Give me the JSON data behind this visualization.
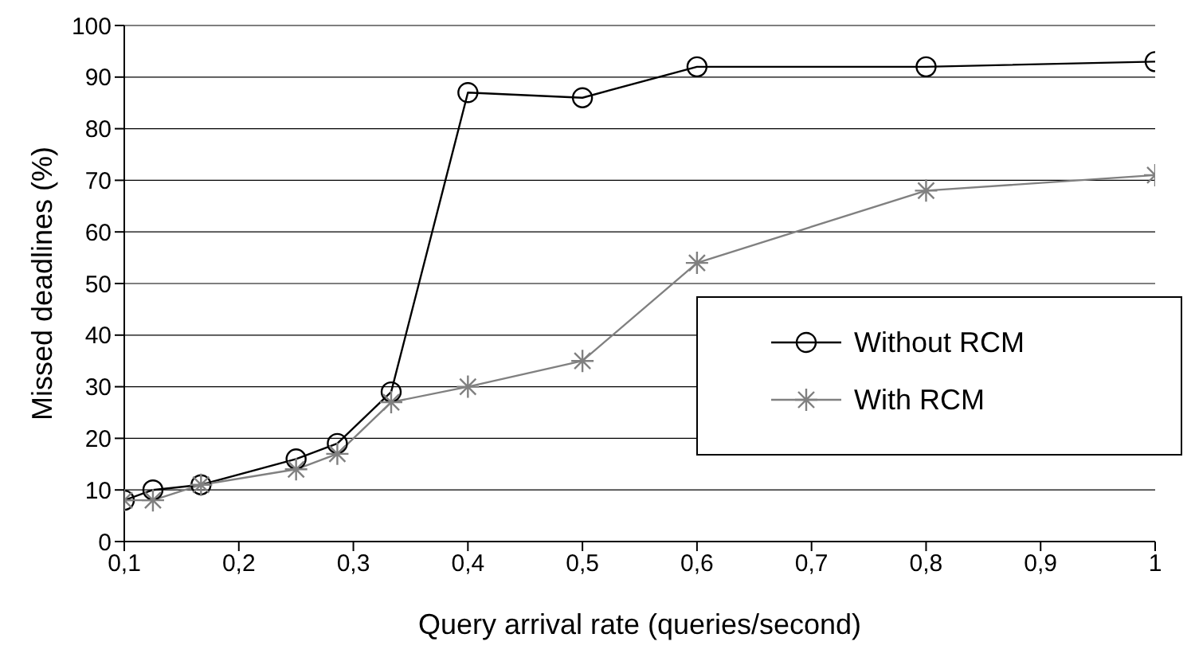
{
  "chart_data": {
    "type": "line",
    "xlabel": "Query arrival rate (queries/second)",
    "ylabel": "Missed deadlines (%)",
    "x": [
      0.1,
      0.125,
      0.167,
      0.25,
      0.286,
      0.333,
      0.4,
      0.5,
      0.6,
      0.8,
      1
    ],
    "series": [
      {
        "name": "Without RCM",
        "color": "#000000",
        "marker": "circle",
        "values": [
          8,
          10,
          11,
          16,
          19,
          29,
          87,
          86,
          92,
          92,
          93
        ]
      },
      {
        "name": "With RCM",
        "color": "#808080",
        "marker": "cross",
        "values": [
          8,
          8,
          11,
          14,
          17,
          27,
          30,
          35,
          54,
          68,
          71
        ]
      }
    ],
    "xlim": [
      0.1,
      1
    ],
    "ylim": [
      0,
      100
    ],
    "xticks": [
      {
        "value": 0.1,
        "label": "0,1"
      },
      {
        "value": 0.2,
        "label": "0,2"
      },
      {
        "value": 0.3,
        "label": "0,3"
      },
      {
        "value": 0.4,
        "label": "0,4"
      },
      {
        "value": 0.5,
        "label": "0,5"
      },
      {
        "value": 0.6,
        "label": "0,6"
      },
      {
        "value": 0.7,
        "label": "0,7"
      },
      {
        "value": 0.8,
        "label": "0,8"
      },
      {
        "value": 0.9,
        "label": "0,9"
      },
      {
        "value": 1,
        "label": "1"
      }
    ],
    "yticks": [
      0,
      10,
      20,
      30,
      40,
      50,
      60,
      70,
      80,
      90,
      100
    ],
    "grid": "y",
    "legend": "right",
    "line_style": "solid"
  }
}
